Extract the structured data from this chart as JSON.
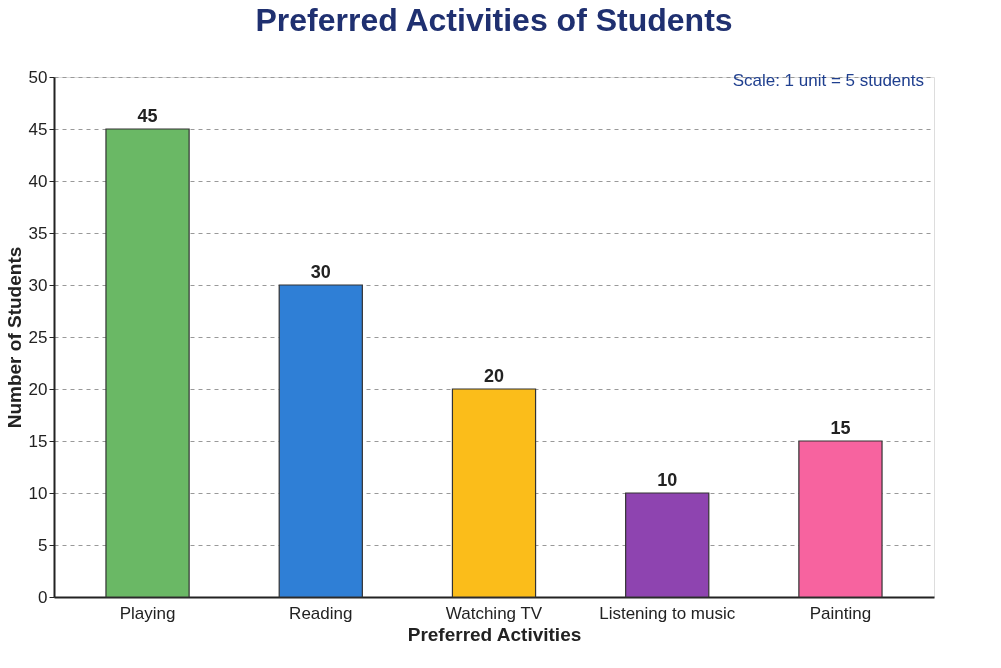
{
  "chart_data": {
    "type": "bar",
    "title": "Preferred Activities of Students",
    "xlabel": "Preferred Activities",
    "ylabel": "Number of Students",
    "categories": [
      "Playing",
      "Reading",
      "Watching TV",
      "Listening to music",
      "Painting"
    ],
    "values": [
      45,
      30,
      20,
      10,
      15
    ],
    "colors": [
      "#6ab865",
      "#2f7fd6",
      "#fbbd1a",
      "#8e44b0",
      "#f7639f"
    ],
    "ylim": [
      0,
      50
    ],
    "yticks": [
      0,
      5,
      10,
      15,
      20,
      25,
      30,
      35,
      40,
      45,
      50
    ],
    "grid": "y",
    "data_labels": true,
    "annotations": [
      "Scale: 1 unit = 5 students"
    ]
  }
}
